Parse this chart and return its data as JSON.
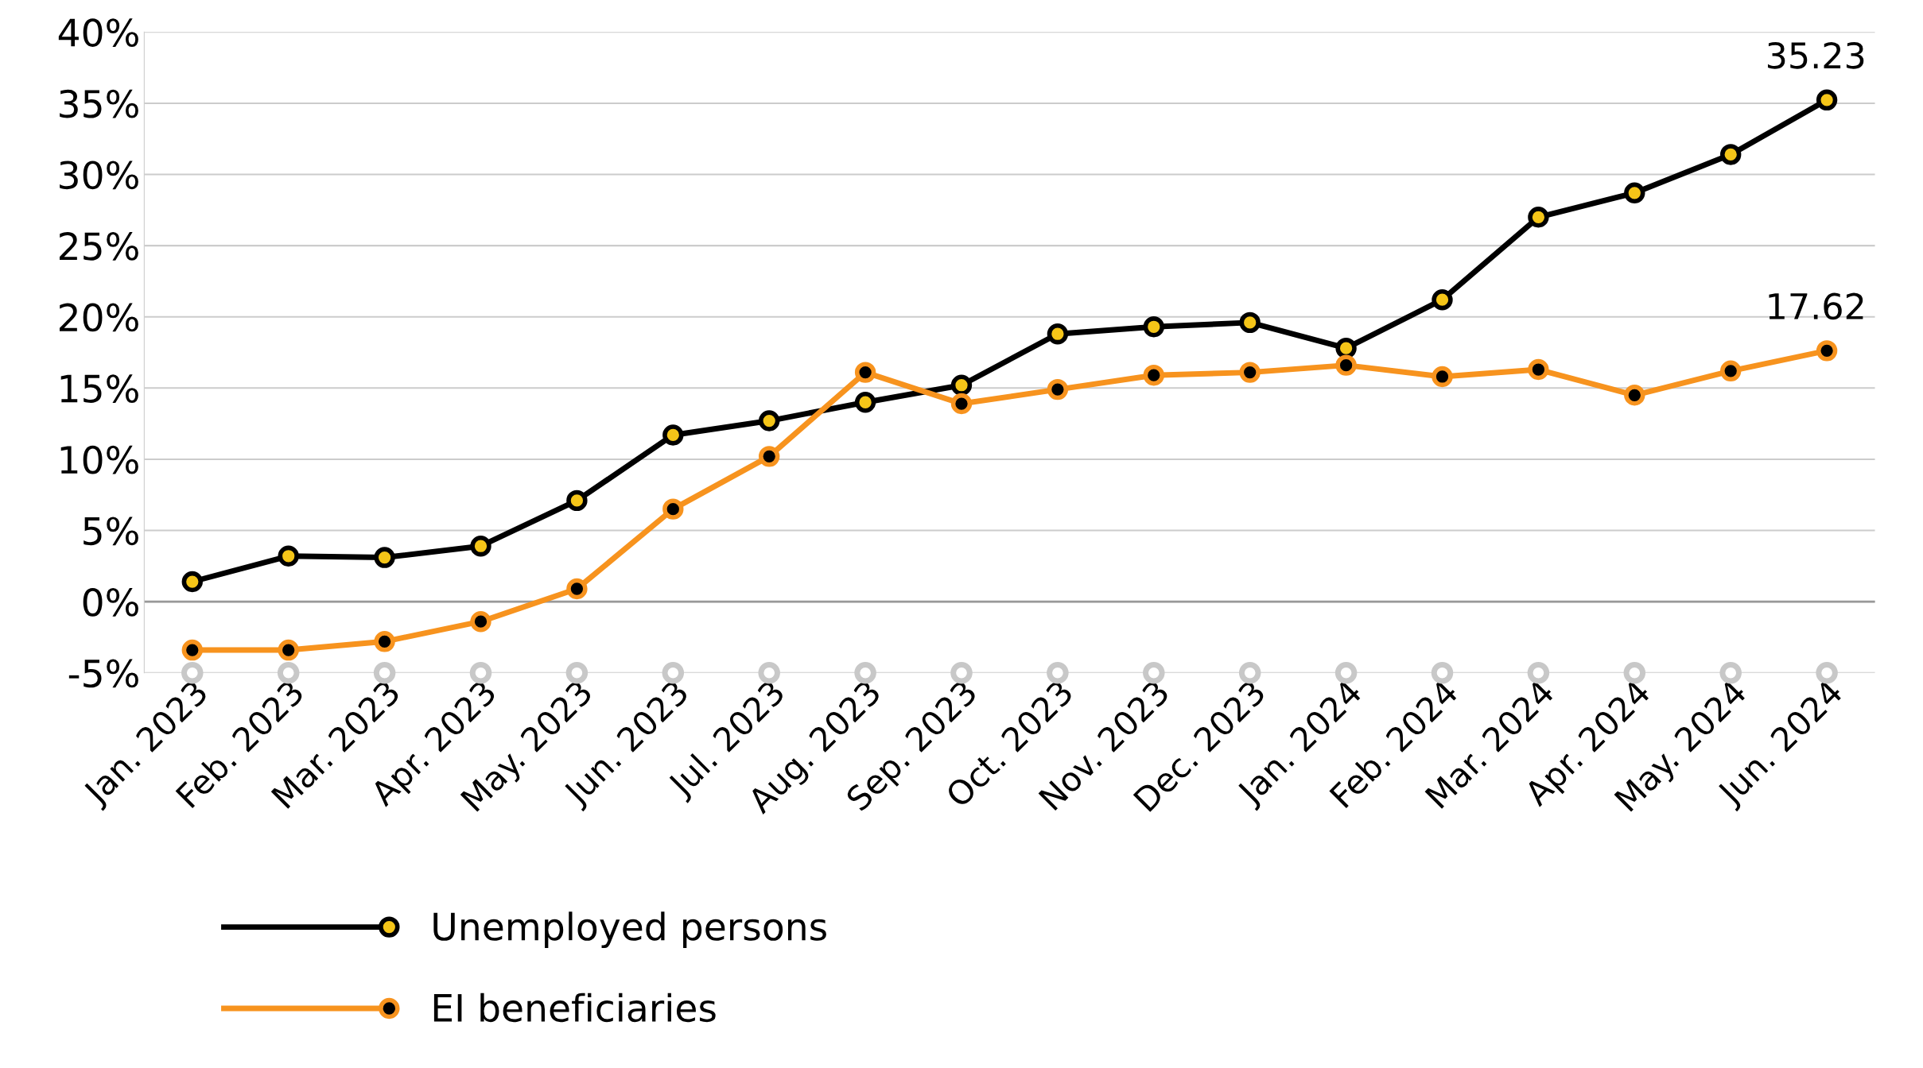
{
  "chart_data": {
    "type": "line",
    "categories": [
      "Jan. 2023",
      "Feb. 2023",
      "Mar. 2023",
      "Apr. 2023",
      "May. 2023",
      "Jun. 2023",
      "Jul. 2023",
      "Aug. 2023",
      "Sep. 2023",
      "Oct. 2023",
      "Nov. 2023",
      "Dec. 2023",
      "Jan. 2024",
      "Feb. 2024",
      "Mar. 2024",
      "Apr. 2024",
      "May. 2024",
      "Jun. 2024"
    ],
    "series": [
      {
        "name": "Unemployed persons",
        "color": "#000000",
        "values": [
          1.4,
          3.2,
          3.1,
          3.9,
          7.1,
          11.7,
          12.7,
          14.0,
          15.2,
          18.8,
          19.3,
          19.6,
          17.8,
          21.2,
          27.0,
          28.7,
          31.4,
          35.23
        ]
      },
      {
        "name": "EI beneficiaries",
        "color": "#f7931e",
        "values": [
          -3.4,
          -3.4,
          -2.8,
          -1.4,
          0.9,
          6.5,
          10.2,
          16.1,
          13.9,
          14.9,
          15.9,
          16.1,
          16.6,
          15.8,
          16.3,
          14.5,
          16.2,
          17.62
        ]
      },
      {
        "type": "scatter",
        "color": "#c8c8c8",
        "values": [
          -5,
          -5,
          -5,
          -5,
          -5,
          -5,
          -5,
          -5,
          -5,
          -5,
          -5,
          -5,
          -5,
          -5,
          -5,
          -5,
          -5,
          -5
        ]
      }
    ],
    "ylim": [
      -5,
      40
    ],
    "yticks": [
      {
        "value": -5,
        "label": "-5%"
      },
      {
        "value": 0,
        "label": "0%"
      },
      {
        "value": 5,
        "label": "5%"
      },
      {
        "value": 10,
        "label": "10%"
      },
      {
        "value": 15,
        "label": "15%"
      },
      {
        "value": 20,
        "label": "20%"
      },
      {
        "value": 25,
        "label": "25%"
      },
      {
        "value": 30,
        "label": "30%"
      },
      {
        "value": 35,
        "label": "35%"
      },
      {
        "value": 40,
        "label": "40%"
      }
    ],
    "grid": "y",
    "ref_lines": [
      {
        "axis": "y",
        "value": 0,
        "color": "#999999"
      }
    ],
    "marker": "circle",
    "line_style": "solid",
    "legend": "bottom",
    "annotations": [
      {
        "text": "35.23",
        "x": "Jun. 2024",
        "y": 35.23
      },
      {
        "text": "17.62",
        "x": "Jun. 2024",
        "y": 17.62
      }
    ]
  }
}
